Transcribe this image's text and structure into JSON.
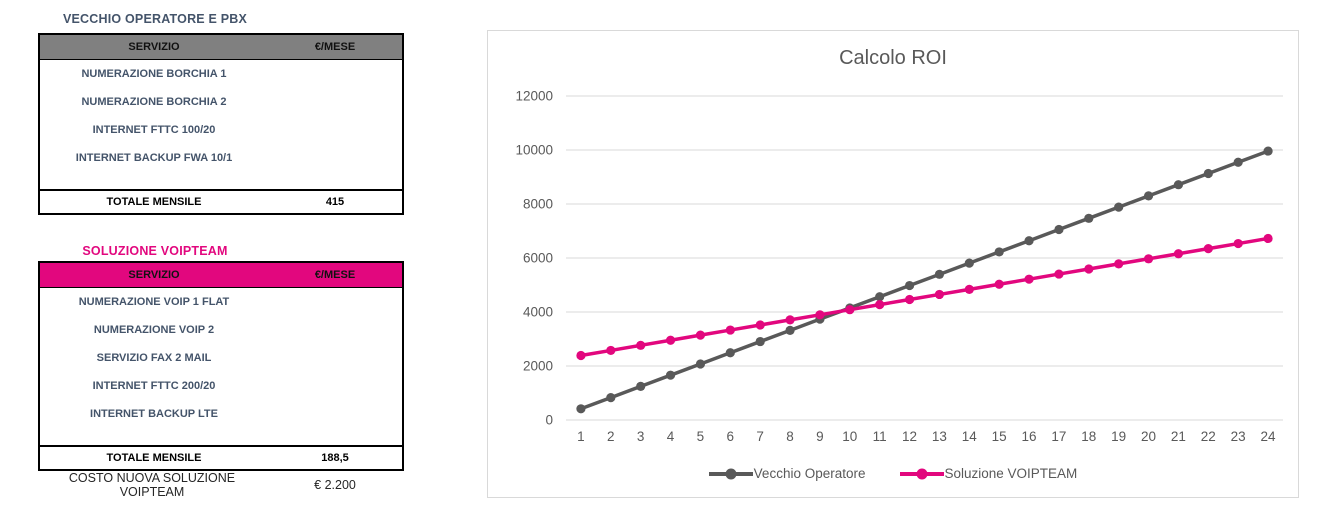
{
  "colors": {
    "magenta": "#E2077E",
    "series_gray": "#595959",
    "header_gray": "#808080",
    "navy_text": "#44546A",
    "table_border": "#000000",
    "chart_border": "#D9D9D9",
    "grid": "#D9D9D9",
    "chart_text": "#595959"
  },
  "old_operator_table": {
    "title": "VECCHIO OPERATORE E PBX",
    "columns": [
      "SERVIZIO",
      "€/MESE"
    ],
    "rows": [
      "NUMERAZIONE BORCHIA 1",
      "NUMERAZIONE BORCHIA 2",
      "INTERNET FTTC 100/20",
      "INTERNET BACKUP FWA 10/1"
    ],
    "total_label": "TOTALE MENSILE",
    "total_value": "415"
  },
  "voipteam_table": {
    "title": "SOLUZIONE VOIPTEAM",
    "columns": [
      "SERVIZIO",
      "€/MESE"
    ],
    "rows": [
      "NUMERAZIONE VOIP 1 FLAT",
      "NUMERAZIONE VOIP 2",
      "SERVIZIO FAX 2 MAIL",
      "INTERNET FTTC 200/20",
      "INTERNET BACKUP LTE"
    ],
    "total_label": "TOTALE MENSILE",
    "total_value": "188,5",
    "footer_label": "COSTO NUOVA SOLUZIONE VOIPTEAM",
    "footer_value": "€ 2.200"
  },
  "chart_data": {
    "type": "line",
    "title": "Calcolo ROI",
    "x": [
      1,
      2,
      3,
      4,
      5,
      6,
      7,
      8,
      9,
      10,
      11,
      12,
      13,
      14,
      15,
      16,
      17,
      18,
      19,
      20,
      21,
      22,
      23,
      24
    ],
    "series": [
      {
        "name": "Vecchio Operatore",
        "color": "#595959",
        "values": [
          415,
          830,
          1245,
          1660,
          2075,
          2490,
          2905,
          3320,
          3735,
          4150,
          4565,
          4980,
          5395,
          5810,
          6225,
          6640,
          7055,
          7470,
          7885,
          8300,
          8715,
          9130,
          9545,
          9960
        ]
      },
      {
        "name": "Soluzione VOIPTEAM",
        "color": "#E2077E",
        "values": [
          2388.5,
          2577,
          2765.5,
          2954,
          3142.5,
          3331,
          3519.5,
          3708,
          3896.5,
          4085,
          4273.5,
          4462,
          4650.5,
          4839,
          5027.5,
          5216,
          5404.5,
          5593,
          5781.5,
          5970,
          6158.5,
          6347,
          6535.5,
          6724
        ]
      }
    ],
    "ylim": [
      0,
      12000
    ],
    "ytick_interval": 2000,
    "grid": true,
    "grid_color": "#D9D9D9",
    "axis_text_color": "#595959",
    "legend_position": "bottom"
  }
}
